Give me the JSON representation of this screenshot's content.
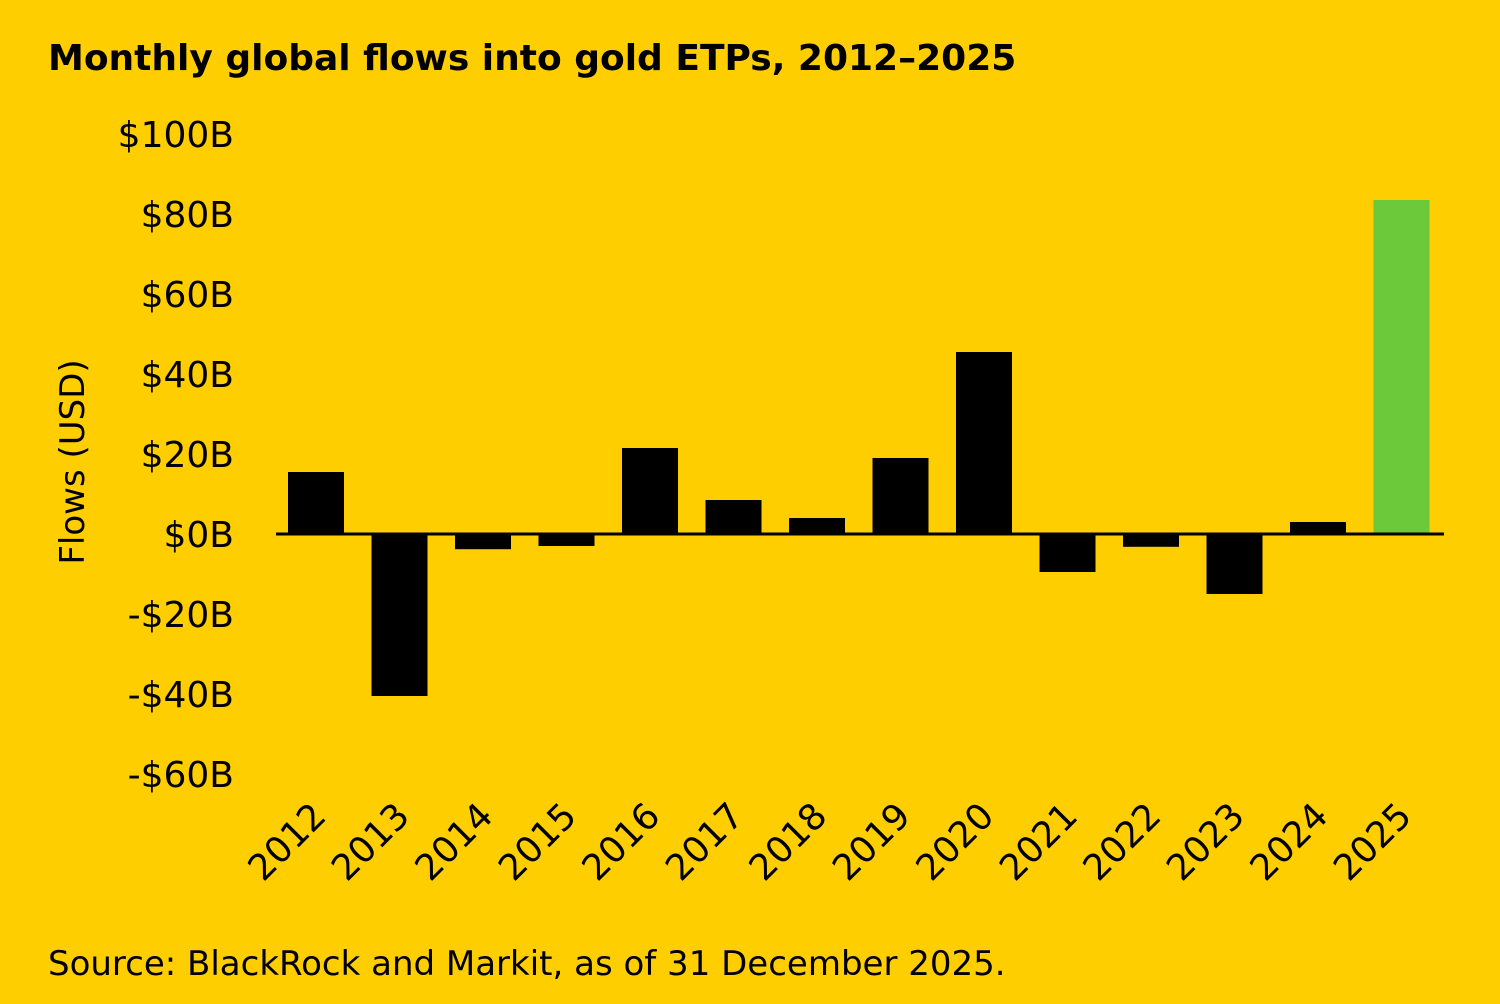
{
  "colors": {
    "background": "#FFCE00",
    "bar_default": "#000000",
    "bar_highlight": "#6CC93A"
  },
  "source": "Source: BlackRock and Markit, as of 31 December 2025.",
  "chart_data": {
    "type": "bar",
    "title": "Monthly global flows into gold ETPs, 2012–2025",
    "xlabel": "",
    "ylabel": "Flows (USD)",
    "categories": [
      "2012",
      "2013",
      "2014",
      "2015",
      "2016",
      "2017",
      "2018",
      "2019",
      "2020",
      "2021",
      "2022",
      "2023",
      "2024",
      "2025"
    ],
    "values": [
      15.5,
      -40.5,
      -3.8,
      -3.0,
      21.5,
      8.5,
      4.0,
      19.0,
      45.5,
      -9.5,
      -3.2,
      -15.0,
      3.0,
      83.5
    ],
    "highlight_category": "2025",
    "ylim": [
      -60,
      100
    ],
    "yticks": [
      100,
      80,
      60,
      40,
      20,
      0,
      -20,
      -40,
      -60
    ],
    "ytick_labels": [
      "$100B",
      "$80B",
      "$60B",
      "$40B",
      "$20B",
      "$0B",
      "-$20B",
      "-$40B",
      "-$60B"
    ],
    "grid": false,
    "legend": "none"
  }
}
